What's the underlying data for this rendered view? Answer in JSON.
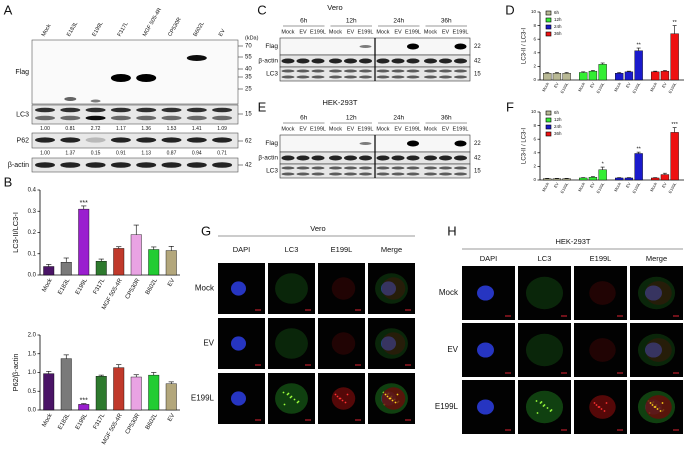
{
  "panel_A": {
    "letter": "A",
    "lanes": [
      "Mock",
      "E183L",
      "E199L",
      "F317L",
      "MGF 505-4R",
      "CP530R",
      "B602L",
      "EV"
    ],
    "unit": "(kDa)",
    "blots": [
      {
        "name": "Flag",
        "kda": [
          70,
          55,
          40,
          35,
          25
        ]
      },
      {
        "name": "LC3",
        "kda": [
          15
        ]
      },
      {
        "name": "P62",
        "kda": [
          62
        ]
      },
      {
        "name": "β-actin",
        "kda": [
          42
        ]
      }
    ],
    "ratios": [
      [
        "1.00",
        "0.81",
        "2.72",
        "1.17",
        "1.36",
        "1.53",
        "1.41",
        "1.09"
      ],
      [
        "1.00",
        "1.37",
        "0.15",
        "0.91",
        "1.13",
        "0.87",
        "0.94",
        "0.71"
      ]
    ]
  },
  "panel_B": {
    "letter": "B"
  },
  "panel_C": {
    "letter": "C",
    "title": "Vero",
    "times": [
      "6h",
      "12h",
      "24h",
      "36h"
    ],
    "lanes": [
      "Mock",
      "EV",
      "E199L"
    ],
    "blots": [
      {
        "name": "Flag",
        "kda": 22
      },
      {
        "name": "β-actin",
        "kda": 42
      },
      {
        "name": "LC3",
        "kda": 15
      }
    ]
  },
  "panel_D": {
    "letter": "D"
  },
  "panel_E": {
    "letter": "E",
    "title": "HEK-293T",
    "times": [
      "6h",
      "12h",
      "24h",
      "36h"
    ],
    "lanes": [
      "Mock",
      "EV",
      "E199L"
    ],
    "blots": [
      {
        "name": "Flag",
        "kda": 22
      },
      {
        "name": "β-actin",
        "kda": 42
      },
      {
        "name": "LC3",
        "kda": 15
      }
    ]
  },
  "panel_F": {
    "letter": "F"
  },
  "panel_G": {
    "letter": "G",
    "title": "Vero",
    "columns": [
      "DAPI",
      "LC3",
      "E199L",
      "Merge"
    ],
    "rows": [
      "Mock",
      "EV",
      "E199L"
    ]
  },
  "panel_H": {
    "letter": "H",
    "title": "HEK-293T",
    "columns": [
      "DAPI",
      "LC3",
      "E199L",
      "Merge"
    ],
    "rows": [
      "Mock",
      "EV",
      "E199L"
    ]
  },
  "chart_data": [
    {
      "type": "bar",
      "ylabel": "LC3-II/LC3-I",
      "categories": [
        "Mock",
        "E183L",
        "E199L",
        "F317L",
        "MGF 505-4R",
        "CP530R",
        "B602L",
        "EV"
      ],
      "values": [
        0.04,
        0.06,
        0.31,
        0.065,
        0.125,
        0.19,
        0.12,
        0.115
      ],
      "errors": [
        0.01,
        0.02,
        0.015,
        0.01,
        0.008,
        0.045,
        0.012,
        0.02
      ],
      "colors": [
        "#4a1466",
        "#7a7a7a",
        "#9a1ecf",
        "#2e7a2e",
        "#c0392b",
        "#e9a3e3",
        "#22cc33",
        "#b3a77c"
      ],
      "ylim": [
        0,
        0.4
      ],
      "yticks": [
        {
          "value": 0,
          "label": "0.0"
        },
        0.1,
        0.2,
        0.3,
        0.4
      ],
      "annotations": [
        {
          "category": "E199L",
          "text": "***"
        }
      ]
    },
    {
      "type": "bar",
      "ylabel": "P62/β-actin",
      "categories": [
        "Mock",
        "E183L",
        "E199L",
        "F317L",
        "MGF 505-4R",
        "CP530R",
        "B602L",
        "EV"
      ],
      "values": [
        0.97,
        1.37,
        0.15,
        0.9,
        1.13,
        0.88,
        0.93,
        0.7
      ],
      "errors": [
        0.06,
        0.1,
        0.02,
        0.03,
        0.08,
        0.06,
        0.07,
        0.05
      ],
      "colors": [
        "#4a1466",
        "#7a7a7a",
        "#9a1ecf",
        "#2e7a2e",
        "#c0392b",
        "#e9a3e3",
        "#22cc33",
        "#b3a77c"
      ],
      "ylim": [
        0,
        2
      ],
      "yticks": [
        {
          "value": 0,
          "label": "0.0"
        },
        0.5,
        {
          "value": 1,
          "label": "1.0"
        },
        1.5,
        {
          "value": 2,
          "label": "2.0"
        }
      ],
      "annotations": [
        {
          "category": "E199L",
          "text": "***"
        }
      ]
    },
    {
      "type": "bar",
      "ylabel": "LC3-II / LC3-I",
      "categories": [
        "Mock",
        "EV",
        "E199L"
      ],
      "series": [
        {
          "name": "6h",
          "color": "#b8b894",
          "values": [
            1,
            1,
            1
          ],
          "errors": [
            0.1,
            0.1,
            0.1
          ]
        },
        {
          "name": "12h",
          "color": "#33ee33",
          "values": [
            1.1,
            1.3,
            2.3
          ],
          "errors": [
            0.1,
            0.1,
            0.2
          ]
        },
        {
          "name": "24h",
          "color": "#1a1acc",
          "values": [
            1,
            1.2,
            4.3
          ],
          "errors": [
            0.1,
            0.1,
            0.4
          ]
        },
        {
          "name": "36h",
          "color": "#ee1111",
          "values": [
            1.2,
            1.3,
            6.8
          ],
          "errors": [
            0.1,
            0.1,
            1.2
          ]
        }
      ],
      "ylim": [
        0,
        10
      ],
      "yticks": [
        0,
        2,
        4,
        6,
        8,
        10
      ],
      "legend": "upper left",
      "annotations": [
        {
          "series": "24h",
          "category": "E199L",
          "text": "**"
        },
        {
          "series": "36h",
          "category": "E199L",
          "text": "**"
        }
      ]
    },
    {
      "type": "bar",
      "ylabel": "LC3-II / LC3-I",
      "categories": [
        "Mock",
        "EV",
        "E199L"
      ],
      "series": [
        {
          "name": "6h",
          "color": "#b8b894",
          "values": [
            0.2,
            0.2,
            0.2
          ],
          "errors": [
            0.05,
            0.05,
            0.05
          ]
        },
        {
          "name": "12h",
          "color": "#33ee33",
          "values": [
            0.3,
            0.4,
            1.5
          ],
          "errors": [
            0.05,
            0.1,
            0.4
          ]
        },
        {
          "name": "24h",
          "color": "#1a1acc",
          "values": [
            0.3,
            0.3,
            3.9
          ],
          "errors": [
            0.05,
            0.05,
            0.2
          ]
        },
        {
          "name": "36h",
          "color": "#ee1111",
          "values": [
            0.3,
            0.8,
            7
          ],
          "errors": [
            0.05,
            0.2,
            0.7
          ]
        }
      ],
      "ylim": [
        0,
        10
      ],
      "yticks": [
        0,
        2,
        4,
        6,
        8,
        10
      ],
      "legend": "upper left",
      "annotations": [
        {
          "series": "12h",
          "category": "E199L",
          "text": "*"
        },
        {
          "series": "24h",
          "category": "E199L",
          "text": "**"
        },
        {
          "series": "36h",
          "category": "E199L",
          "text": "***"
        }
      ]
    }
  ]
}
